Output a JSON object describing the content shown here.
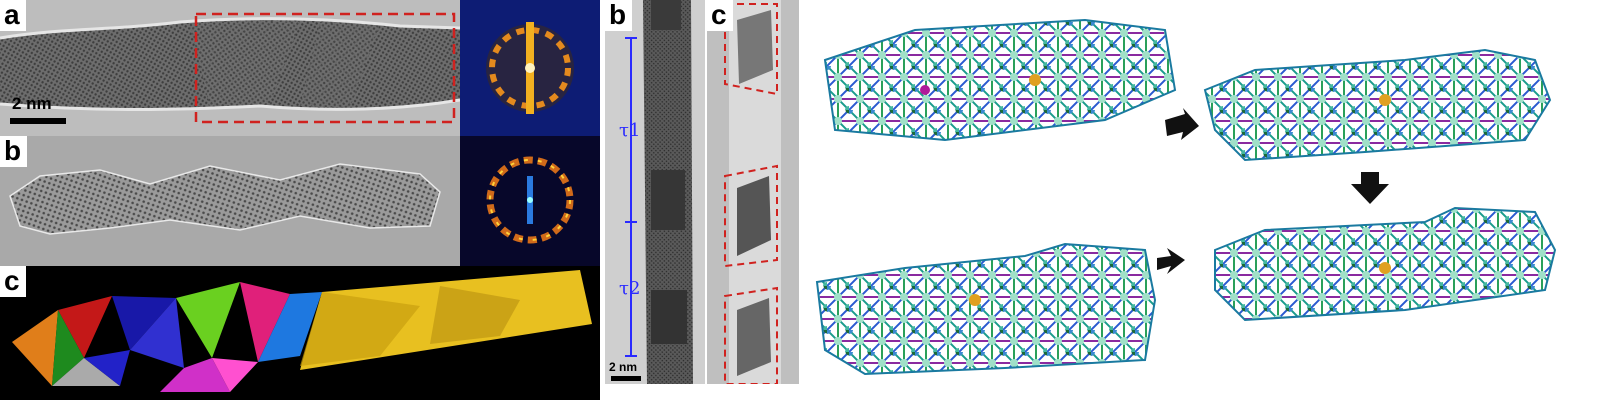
{
  "left_figure": {
    "panel_a": {
      "label": "a",
      "scalebar": "2 nm"
    },
    "panel_b": {
      "label": "b"
    },
    "panel_c": {
      "label": "c"
    }
  },
  "middle_figure": {
    "panel_b": {
      "label": "b",
      "scalebar": "2 nm",
      "tau1": "τ1",
      "tau2": "τ2"
    },
    "panel_c": {
      "label": "c"
    }
  },
  "right_figure": {
    "sequence": [
      "structure-1",
      "structure-2",
      "structure-3",
      "structure-4"
    ],
    "arrows": [
      "right",
      "down",
      "left"
    ]
  },
  "colors": {
    "dashed_box": "#d0221f",
    "scale_text": "#ffffff",
    "tau_blue": "#2a2aff",
    "gold": "#e8c020"
  }
}
